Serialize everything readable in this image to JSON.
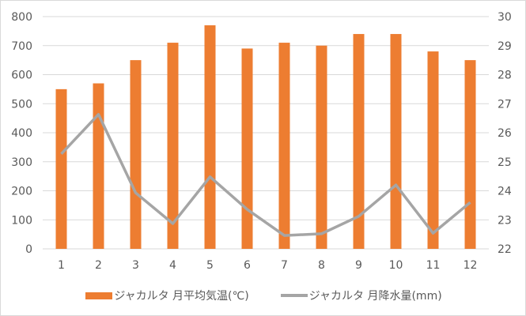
{
  "chart_data": {
    "type": "bar+line",
    "title": "",
    "categories": [
      "1",
      "2",
      "3",
      "4",
      "5",
      "6",
      "7",
      "8",
      "9",
      "10",
      "11",
      "12"
    ],
    "series": [
      {
        "name": "ジャカルタ 月平均気温(℃)",
        "type": "bar",
        "axis": "right",
        "color": "#ed7d31",
        "values": [
          27.5,
          27.7,
          28.5,
          29.1,
          29.7,
          28.9,
          29.1,
          29.0,
          29.4,
          29.4,
          28.8,
          28.5
        ]
      },
      {
        "name": "ジャカルタ 月降水量(mm)",
        "type": "line",
        "axis": "left",
        "color": "#a5a5a5",
        "values": [
          327,
          463,
          193,
          87,
          248,
          136,
          46,
          52,
          112,
          220,
          54,
          160
        ]
      }
    ],
    "left_axis": {
      "min": 0,
      "max": 800,
      "step": 100,
      "ticks": [
        "0",
        "100",
        "200",
        "300",
        "400",
        "500",
        "600",
        "700",
        "800"
      ]
    },
    "right_axis": {
      "min": 22,
      "max": 30,
      "step": 1,
      "ticks": [
        "22",
        "23",
        "24",
        "25",
        "26",
        "27",
        "28",
        "29",
        "30"
      ]
    },
    "grid": true,
    "legend_position": "bottom"
  },
  "legend": {
    "bar_label": "ジャカルタ 月平均気温(℃)",
    "line_label": "ジャカルタ 月降水量(mm)"
  }
}
